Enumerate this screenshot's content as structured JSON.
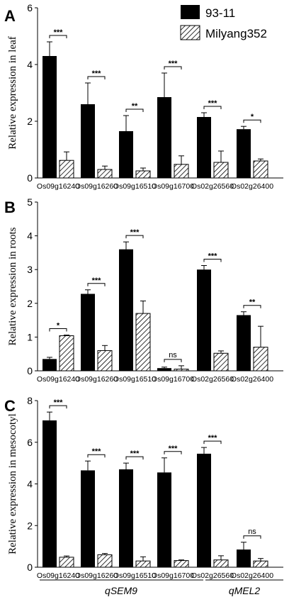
{
  "legend": {
    "items": [
      {
        "label": "93-11",
        "pattern": "solid"
      },
      {
        "label": "Milyang352",
        "pattern": "hatch"
      }
    ]
  },
  "groups": [
    {
      "label": "qSEM9"
    },
    {
      "label": "qMEL2"
    }
  ],
  "chart_data": [
    {
      "type": "bar",
      "panel": "A",
      "ylabel": "Relative expression in leaf",
      "ylim": [
        0,
        6
      ],
      "yticks": [
        "0",
        "2",
        "4",
        "6"
      ],
      "categories": [
        "Os09g16240",
        "Os09g16260",
        "Os09g16510",
        "Os09g16700",
        "Os02g26560",
        "Os02g26400"
      ],
      "series": [
        {
          "name": "93-11",
          "values": [
            4.3,
            2.6,
            1.65,
            2.85,
            2.15,
            1.72
          ],
          "errors": [
            0.5,
            0.75,
            0.55,
            0.85,
            0.15,
            0.1
          ]
        },
        {
          "name": "Milyang352",
          "values": [
            0.62,
            0.3,
            0.25,
            0.48,
            0.55,
            0.6
          ],
          "errors": [
            0.3,
            0.12,
            0.1,
            0.3,
            0.4,
            0.07
          ]
        }
      ],
      "significance": [
        "***",
        "***",
        "**",
        "***",
        "***",
        "*"
      ]
    },
    {
      "type": "bar",
      "panel": "B",
      "ylabel": "Relative expression in roots",
      "ylim": [
        0,
        5
      ],
      "yticks": [
        "0",
        "1",
        "2",
        "3",
        "4",
        "5"
      ],
      "categories": [
        "Os09g16240",
        "Os09g16260",
        "Os09g16510",
        "Os09g16700",
        "Os02g26560",
        "Os02g26400"
      ],
      "series": [
        {
          "name": "93-11",
          "values": [
            0.35,
            2.28,
            3.6,
            0.08,
            3.0,
            1.65
          ],
          "errors": [
            0.05,
            0.12,
            0.22,
            0.03,
            0.12,
            0.1
          ]
        },
        {
          "name": "Milyang352",
          "values": [
            1.04,
            0.6,
            1.7,
            0.05,
            0.52,
            0.7
          ],
          "errors": [
            0.02,
            0.15,
            0.37,
            0.1,
            0.07,
            0.62
          ]
        }
      ],
      "significance": [
        "*",
        "***",
        "***",
        "ns",
        "***",
        "**"
      ]
    },
    {
      "type": "bar",
      "panel": "C",
      "ylabel": "Relative expression in mesocotyl",
      "ylim": [
        0,
        8
      ],
      "yticks": [
        "0",
        "2",
        "4",
        "6",
        "8"
      ],
      "categories": [
        "Os09g16240",
        "Os09g16260",
        "Os09g16510",
        "Os09g16700",
        "Os02g26560",
        "Os02g26400"
      ],
      "series": [
        {
          "name": "93-11",
          "values": [
            7.05,
            4.65,
            4.7,
            4.55,
            5.45,
            0.85
          ],
          "errors": [
            0.4,
            0.45,
            0.3,
            0.7,
            0.3,
            0.35
          ]
        },
        {
          "name": "Milyang352",
          "values": [
            0.48,
            0.6,
            0.3,
            0.32,
            0.35,
            0.3
          ],
          "errors": [
            0.06,
            0.06,
            0.2,
            0.03,
            0.2,
            0.12
          ]
        }
      ],
      "significance": [
        "***",
        "***",
        "***",
        "***",
        "***",
        "ns"
      ]
    }
  ]
}
